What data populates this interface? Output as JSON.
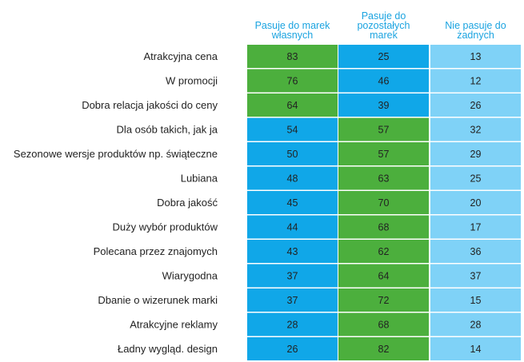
{
  "chart_data": {
    "type": "table",
    "columns": [
      "Pasuje do marek własnych",
      "Pasuje do pozostałych marek",
      "Nie pasuje do żadnych"
    ],
    "column_header_lines": [
      [
        "Pasuje do marek",
        "własnych"
      ],
      [
        "Pasuje do",
        "pozostałych",
        "marek"
      ],
      [
        "Nie pasuje do",
        "żadnych"
      ]
    ],
    "rows": [
      {
        "label": "Atrakcyjna cena",
        "values": [
          83,
          25,
          13
        ]
      },
      {
        "label": "W promocji",
        "values": [
          76,
          46,
          12
        ]
      },
      {
        "label": "Dobra relacja jakości do ceny",
        "values": [
          64,
          39,
          26
        ]
      },
      {
        "label": "Dla osób takich, jak ja",
        "values": [
          54,
          57,
          32
        ]
      },
      {
        "label": "Sezonowe wersje produktów np. świąteczne",
        "values": [
          50,
          57,
          29
        ]
      },
      {
        "label": "Lubiana",
        "values": [
          48,
          63,
          25
        ]
      },
      {
        "label": "Dobra jakość",
        "values": [
          45,
          70,
          20
        ]
      },
      {
        "label": "Duży wybór produktów",
        "values": [
          44,
          68,
          17
        ]
      },
      {
        "label": "Polecana przez znajomych",
        "values": [
          43,
          62,
          36
        ]
      },
      {
        "label": "Wiarygodna",
        "values": [
          37,
          64,
          37
        ]
      },
      {
        "label": "Dbanie o wizerunek marki",
        "values": [
          37,
          72,
          15
        ]
      },
      {
        "label": "Atrakcyjne reklamy",
        "values": [
          28,
          68,
          28
        ]
      },
      {
        "label": "Ładny wygląd. design",
        "values": [
          26,
          82,
          14
        ]
      }
    ],
    "cell_colors": {
      "highest": "#4caf3d",
      "middle": "#10a7e8",
      "lowest": "#7fd2f7"
    },
    "header_color": "#1aa3e0"
  }
}
